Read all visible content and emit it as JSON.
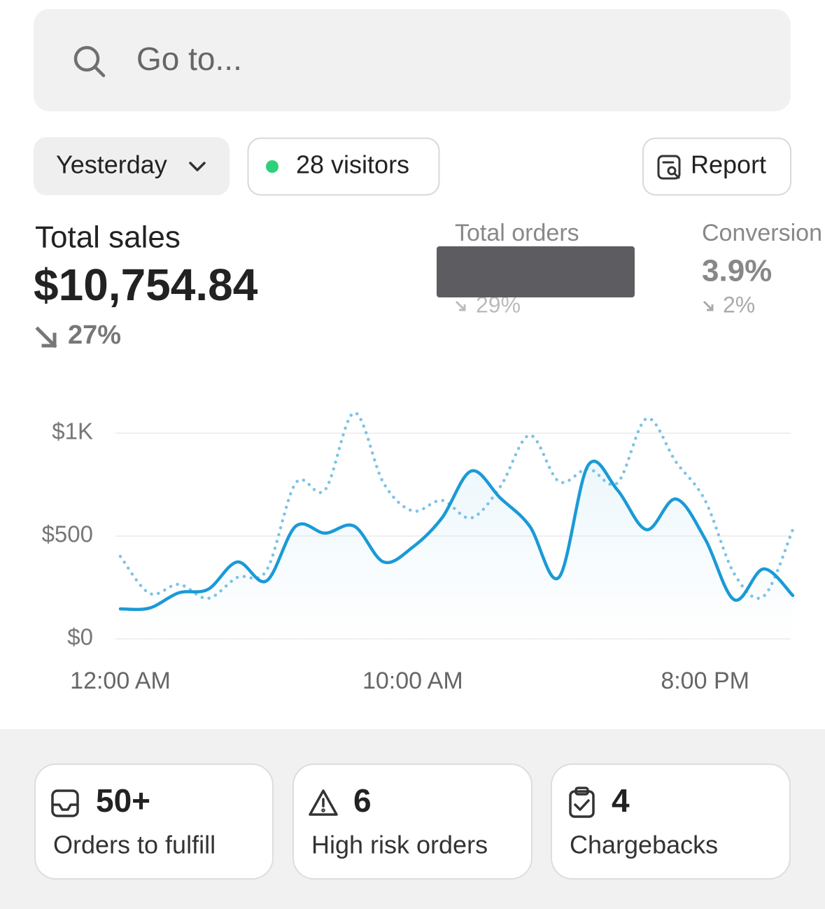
{
  "search": {
    "placeholder": "Go to..."
  },
  "filters": {
    "period": "Yesterday",
    "visitors": "28 visitors",
    "report": "Report"
  },
  "metrics": [
    {
      "label": "Total sales",
      "value": "$10,754.84",
      "change": "27%"
    },
    {
      "label": "Total orders",
      "change": "29%"
    },
    {
      "label": "Conversion",
      "value": "3.9%",
      "change": "2%"
    }
  ],
  "chart_data": {
    "type": "line",
    "categories": [
      "12:00 AM",
      null,
      null,
      null,
      null,
      null,
      null,
      null,
      null,
      null,
      "10:00 AM",
      null,
      null,
      null,
      null,
      null,
      null,
      null,
      null,
      null,
      "8:00 PM",
      null,
      null,
      null
    ],
    "series": [
      {
        "color": "#1a9ad6",
        "style": "solid",
        "values": [
          146,
          150,
          224,
          241,
          374,
          282,
          548,
          514,
          548,
          374,
          446,
          588,
          816,
          684,
          548,
          299,
          844,
          724,
          531,
          680,
          486,
          190,
          340,
          211
        ]
      },
      {
        "color": "#7cc3e6",
        "style": "dotted",
        "values": [
          401,
          221,
          265,
          197,
          299,
          333,
          758,
          724,
          1099,
          758,
          622,
          673,
          588,
          741,
          990,
          765,
          827,
          758,
          1071,
          861,
          673,
          316,
          207,
          531
        ]
      }
    ],
    "ylim": [
      0,
      1000
    ],
    "yticks": [
      {
        "value": 0,
        "label": "$0"
      },
      {
        "value": 500,
        "label": "$500"
      },
      {
        "value": 1000,
        "label": "$1K"
      }
    ],
    "grid": true
  },
  "cards": [
    {
      "value": "50+",
      "label": "Orders to fulfill"
    },
    {
      "value": "6",
      "label": "High risk orders"
    },
    {
      "value": "4",
      "label": "Chargebacks"
    }
  ]
}
